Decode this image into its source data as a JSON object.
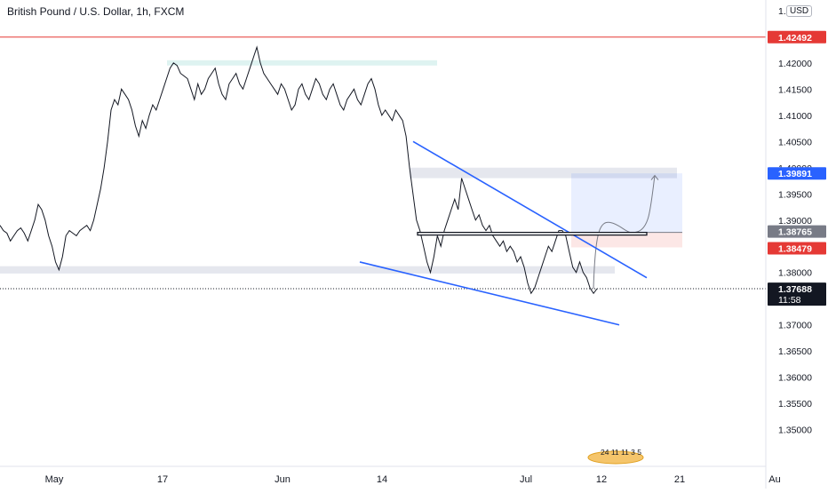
{
  "title": "British Pound / U.S. Dollar, 1h, FXCM",
  "currency_badge": "USD",
  "chart_data": {
    "type": "line",
    "series": [
      {
        "values": [
          1.389,
          1.388,
          1.3875,
          1.386,
          1.387,
          1.388,
          1.3885,
          1.3875,
          1.386,
          1.388,
          1.39,
          1.393,
          1.392,
          1.39,
          1.387,
          1.385,
          1.382,
          1.3805,
          1.383,
          1.387,
          1.388,
          1.3875,
          1.387,
          1.388,
          1.3885,
          1.389,
          1.388,
          1.39,
          1.393,
          1.396,
          1.4,
          1.405,
          1.411,
          1.413,
          1.412,
          1.415,
          1.414,
          1.413,
          1.411,
          1.408,
          1.406,
          1.409,
          1.4075,
          1.41,
          1.412,
          1.411,
          1.413,
          1.415,
          1.417,
          1.419,
          1.42,
          1.4195,
          1.418,
          1.4175,
          1.417,
          1.415,
          1.413,
          1.416,
          1.414,
          1.415,
          1.417,
          1.418,
          1.419,
          1.416,
          1.414,
          1.413,
          1.416,
          1.417,
          1.418,
          1.416,
          1.415,
          1.417,
          1.419,
          1.421,
          1.423,
          1.42,
          1.418,
          1.417,
          1.416,
          1.415,
          1.414,
          1.416,
          1.415,
          1.413,
          1.411,
          1.412,
          1.415,
          1.416,
          1.414,
          1.413,
          1.415,
          1.417,
          1.416,
          1.414,
          1.413,
          1.415,
          1.416,
          1.414,
          1.412,
          1.411,
          1.413,
          1.414,
          1.415,
          1.413,
          1.412,
          1.414,
          1.416,
          1.417,
          1.415,
          1.412,
          1.41,
          1.411,
          1.41,
          1.409,
          1.411,
          1.41,
          1.409,
          1.406,
          1.4,
          1.395,
          1.39,
          1.388,
          1.385,
          1.382,
          1.38,
          1.383,
          1.387,
          1.385,
          1.388,
          1.39,
          1.392,
          1.394,
          1.392,
          1.398,
          1.396,
          1.394,
          1.392,
          1.39,
          1.391,
          1.389,
          1.388,
          1.389,
          1.387,
          1.386,
          1.385,
          1.386,
          1.384,
          1.385,
          1.384,
          1.382,
          1.383,
          1.381,
          1.378,
          1.376,
          1.377,
          1.379,
          1.381,
          1.383,
          1.385,
          1.384,
          1.386,
          1.388,
          1.388,
          1.387,
          1.384,
          1.381,
          1.38,
          1.382,
          1.38,
          1.379,
          1.377,
          1.376,
          1.3769
        ]
      }
    ],
    "x_ticks": [
      "May",
      "17",
      "Jun",
      "14",
      "Jul",
      "12",
      "21",
      "Au"
    ],
    "y_ticks": [
      "1.43000",
      "1.42000",
      "1.41500",
      "1.41000",
      "1.40500",
      "1.40000",
      "1.39500",
      "1.39000",
      "1.38000",
      "1.37500",
      "1.37000",
      "1.36500",
      "1.36000",
      "1.35500",
      "1.35000"
    ],
    "ylim": [
      1.343,
      1.432
    ],
    "price_labels": [
      {
        "text": "1.42492",
        "value": 1.42492,
        "color": "#e53935"
      },
      {
        "text": "1.39891",
        "value": 1.39891,
        "color": "#2962ff"
      },
      {
        "text": "1.38765",
        "value": 1.38765,
        "color": "#787b86"
      },
      {
        "text": "1.38479",
        "value": 1.38479,
        "color": "#e53935"
      },
      {
        "text": "1.37688",
        "value": 1.37688,
        "color": "#131722"
      }
    ],
    "countdown": "11:58",
    "annotations": [
      {
        "type": "horizontal-line",
        "value": 1.42492,
        "color": "#e53935"
      },
      {
        "type": "trendline",
        "role": "upper-channel",
        "color": "#2962ff",
        "from": [
          1.405
        ],
        "to": [
          1.379
        ]
      },
      {
        "type": "trendline",
        "role": "lower-channel",
        "color": "#2962ff",
        "from": [
          1.382
        ],
        "to": [
          1.37
        ]
      },
      {
        "type": "zone",
        "role": "resistance-top",
        "low": 1.4195,
        "high": 1.4205,
        "color": "#d8f1ee"
      },
      {
        "type": "zone",
        "role": "supply",
        "low": 1.398,
        "high": 1.4,
        "color": "#e0e3eb"
      },
      {
        "type": "zone",
        "role": "support",
        "low": 1.3798,
        "high": 1.3812,
        "color": "#e0e3eb"
      },
      {
        "type": "rectangle",
        "role": "breakout-box",
        "low": 1.38715,
        "high": 1.38765,
        "color": "#131722"
      },
      {
        "type": "position",
        "target_high": 1.39891,
        "entry": 1.38765,
        "stop": 1.38479
      }
    ],
    "event_badge": "24 11 11 3 5",
    "grid": false,
    "legend": "none"
  }
}
